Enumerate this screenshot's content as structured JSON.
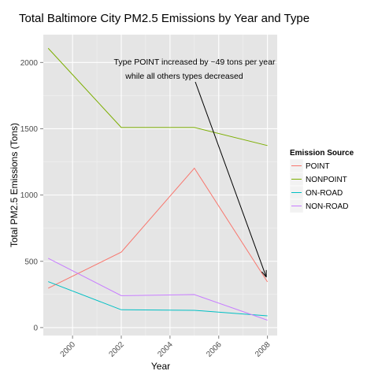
{
  "chart_data": {
    "type": "line",
    "title": "Total Baltimore City PM2.5 Emissions by Year and Type",
    "xlabel": "Year",
    "ylabel": "Total PM2.5 Emissions (Tons)",
    "x": [
      1999,
      2002,
      2005,
      2008
    ],
    "x_ticks": [
      "2000",
      "2002",
      "2004",
      "2006",
      "2008"
    ],
    "y_ticks": [
      "0",
      "500",
      "1000",
      "1500",
      "2000"
    ],
    "xlim": [
      1998.8,
      2008.4
    ],
    "ylim": [
      -60,
      2210
    ],
    "grid": true,
    "legend_position": "right",
    "legend_title": "Emission Source",
    "series": [
      {
        "name": "POINT",
        "color": "#F8766D",
        "values": [
          296.8,
          569.3,
          1202.5,
          345.0
        ]
      },
      {
        "name": "NONPOINT",
        "color": "#7CAE00",
        "values": [
          2107.6,
          1509.5,
          1509.5,
          1373.2
        ]
      },
      {
        "name": "ON-ROAD",
        "color": "#00BFC4",
        "values": [
          346.8,
          134.3,
          130.4,
          88.3
        ]
      },
      {
        "name": "NON-ROAD",
        "color": "#C77CFF",
        "values": [
          522.9,
          240.8,
          248.9,
          55.8
        ]
      }
    ],
    "annotation": {
      "lines": [
        "Type POINT increased by ~49 tons per year",
        "while all others types decreased"
      ]
    }
  }
}
